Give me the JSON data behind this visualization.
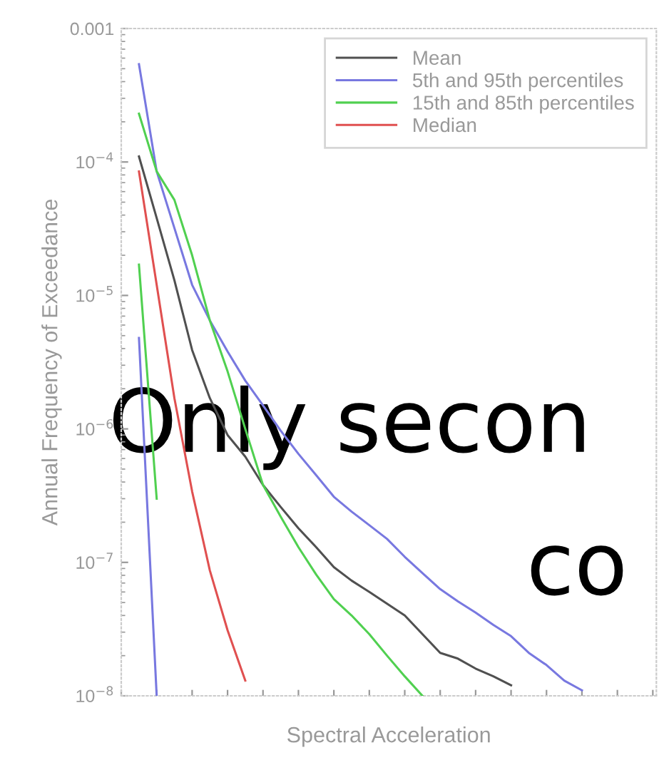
{
  "chart_data": {
    "type": "line",
    "xlabel": "Spectral Acceleration",
    "ylabel": "Annual Frequency of Exceedance",
    "categories": [
      null,
      null,
      null,
      null,
      null,
      null,
      null,
      null,
      null,
      null,
      null,
      null,
      null,
      null,
      null,
      null,
      null,
      null,
      null,
      null,
      null,
      null,
      null,
      null,
      null,
      null,
      null,
      null,
      null,
      null,
      null
    ],
    "series": [
      {
        "name": "Mean",
        "color": "#505050",
        "values": [
          null,
          0.00011,
          3.8e-05,
          1.3e-05,
          3.9e-06,
          1.7e-06,
          9e-07,
          6.2e-07,
          3.8e-07,
          2.6e-07,
          1.8e-07,
          1.3e-07,
          9.2e-08,
          7.3e-08,
          6e-08,
          4.9e-08,
          4e-08,
          2.9e-08,
          2.1e-08,
          1.9e-08,
          1.6e-08,
          1.4e-08,
          1.2e-08,
          null,
          null,
          null,
          null,
          null,
          null,
          null,
          null
        ]
      },
      {
        "name": "5th and 95th percentiles",
        "color": "#7878e0",
        "values": [
          null,
          0.00054,
          8.5e-05,
          3.2e-05,
          1.2e-05,
          6.5e-06,
          3.8e-06,
          2.3e-06,
          1.5e-06,
          9.7e-07,
          6.5e-07,
          4.5e-07,
          3.1e-07,
          2.4e-07,
          1.9e-07,
          1.5e-07,
          1.1e-07,
          8.3e-08,
          6.3e-08,
          5.1e-08,
          4.2e-08,
          3.4e-08,
          2.8e-08,
          2.1e-08,
          1.7e-08,
          1.3e-08,
          1.1e-08,
          null,
          null,
          null,
          null
        ]
      },
      {
        "color": "#7878e0",
        "values": [
          null,
          4.8e-06,
          1e-08,
          null,
          null,
          null,
          null,
          null,
          null,
          null,
          null,
          null,
          null,
          null,
          null,
          null,
          null,
          null,
          null,
          null,
          null,
          null,
          null,
          null,
          null,
          null,
          null,
          null,
          null,
          null,
          null
        ]
      },
      {
        "name": "15th and 85th percentiles",
        "color": "#50d050",
        "values": [
          null,
          0.00023,
          8.5e-05,
          5.2e-05,
          2e-05,
          6.5e-06,
          2.7e-06,
          1e-06,
          3.8e-07,
          2.2e-07,
          1.3e-07,
          8.1e-08,
          5.3e-08,
          4e-08,
          2.9e-08,
          2e-08,
          1.4e-08,
          1e-08,
          null,
          null,
          null,
          null,
          null,
          null,
          null,
          null,
          null,
          null,
          null,
          null,
          null
        ]
      },
      {
        "color": "#50d050",
        "values": [
          null,
          1.7e-05,
          3e-07,
          null,
          null,
          null,
          null,
          null,
          null,
          null,
          null,
          null,
          null,
          null,
          null,
          null,
          null,
          null,
          null,
          null,
          null,
          null,
          null,
          null,
          null,
          null,
          null,
          null,
          null,
          null,
          null
        ]
      },
      {
        "name": "Median",
        "color": "#e05050",
        "values": [
          null,
          8.5e-05,
          1.2e-05,
          1.7e-06,
          3.4e-07,
          8.7e-08,
          3.1e-08,
          1.3e-08,
          null,
          null,
          null,
          null,
          null,
          null,
          null,
          null,
          null,
          null,
          null,
          null,
          null,
          null,
          null,
          null,
          null,
          null,
          null,
          null,
          null,
          null,
          null
        ]
      }
    ],
    "log": "y",
    "ylim": [
      1e-08,
      0.001
    ],
    "yticks": [
      {
        "value": 1e-08,
        "label": "10$^{−8}$"
      },
      {
        "value": 1e-07,
        "label": "10$^{−7}$"
      },
      {
        "value": 1e-06,
        "label": "10$^{−6}$"
      },
      {
        "value": 1e-05,
        "label": "10$^{−5}$"
      },
      {
        "value": 0.0001,
        "label": "10$^{−4}$"
      },
      0.001
    ],
    "legend": "top right",
    "grid": false,
    "marker": "none",
    "line_style": "solid",
    "annotations": [
      "Only secon",
      "co"
    ]
  }
}
